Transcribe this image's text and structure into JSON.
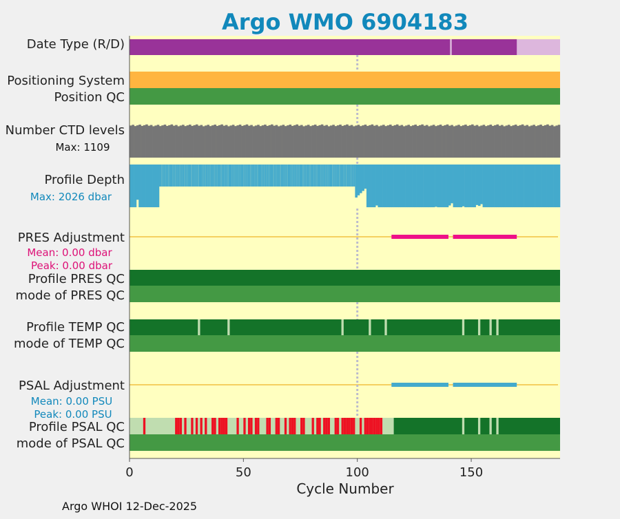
{
  "chart_data": {
    "type": "status-strip",
    "title": "Argo WMO 6904183",
    "xlabel": "Cycle Number",
    "xlim": [
      0,
      189
    ],
    "xticks": [
      0,
      50,
      100,
      150
    ],
    "vline_cycle": 100,
    "footer": "Argo WHOI 12-Dec-2025",
    "colors": {
      "background": "#ffffc0",
      "purple": "#993399",
      "light_purple": "#ddb7dd",
      "orange": "#ffb540",
      "green": "#449944",
      "dark_green": "#147329",
      "pale_green": "#c0ddb0",
      "gray": "#767676",
      "blue": "#44aacc",
      "magenta": "#ee1188",
      "red": "#ee1122",
      "mean_line": "#f0c040",
      "label_blue": "#1188bb",
      "label_magenta": "#dd1177"
    },
    "rows": {
      "date_type": {
        "label": "Date Type (R/D)",
        "realtime_until": 170,
        "gap_cycles": [
          141
        ]
      },
      "positioning": {
        "label": "Positioning System"
      },
      "position_qc": {
        "label": "Position QC"
      },
      "ctd_levels": {
        "label": "Number CTD levels",
        "max_text": "Max: 1109",
        "max": 1109,
        "typical_pct": 0.95
      },
      "profile_depth": {
        "label": "Profile Depth",
        "max_text": "Max: 2026 dbar",
        "max_dbar": 2026,
        "full_cycles": [
          1,
          2,
          3,
          4,
          5,
          6,
          7,
          8,
          9,
          10,
          11,
          12,
          13
        ],
        "shallow_depth_pct": 0.5,
        "ramp_cycles": {
          "101": 0.7,
          "102": 0.65,
          "103": 0.6,
          "104": 0.55
        },
        "spike_cycles": {
          "109": 0.93,
          "114": 0.97,
          "130": 0.97,
          "135": 0.96,
          "141": 0.93,
          "142": 0.88,
          "147": 0.95,
          "150": 0.97,
          "153": 0.92,
          "154": 0.94,
          "155": 0.9,
          "157": 0.97
        }
      },
      "pres_adjustment": {
        "label": "PRES Adjustment",
        "mean_text": "Mean: 0.00 dbar",
        "peak_text": "Peak: 0.00 dbar",
        "segments": [
          [
            115,
            140
          ],
          [
            142,
            170
          ]
        ]
      },
      "profile_pres_qc": {
        "label": "Profile PRES QC"
      },
      "mode_pres_qc": {
        "label": "mode of PRES QC"
      },
      "profile_temp_qc": {
        "label": "Profile TEMP QC",
        "pale_cycles": [
          31,
          44,
          94,
          106,
          113,
          147,
          154,
          159,
          162
        ]
      },
      "mode_temp_qc": {
        "label": "mode of TEMP QC"
      },
      "psal_adjustment": {
        "label": "PSAL Adjustment",
        "mean_text": "Mean: 0.00 PSU",
        "peak_text": "Peak: 0.00 PSU",
        "segments": [
          [
            115,
            140
          ],
          [
            142,
            170
          ]
        ]
      },
      "profile_psal_qc": {
        "label": "Profile PSAL QC",
        "pale_until": 116,
        "red_cycles": [
          7,
          21,
          22,
          23,
          25,
          28,
          30,
          32,
          34,
          37,
          38,
          40,
          41,
          42,
          43,
          48,
          51,
          53,
          54,
          56,
          57,
          61,
          62,
          65,
          66,
          69,
          71,
          72,
          73,
          76,
          77,
          81,
          83,
          84,
          86,
          87,
          88,
          91,
          92,
          94,
          95,
          96,
          97,
          98,
          99,
          102,
          104,
          105,
          106,
          107,
          108,
          109,
          110,
          111
        ],
        "pale_cycles_after": [
          147,
          154,
          159,
          162
        ]
      },
      "mode_psal_qc": {
        "label": "mode of PSAL QC"
      }
    }
  }
}
